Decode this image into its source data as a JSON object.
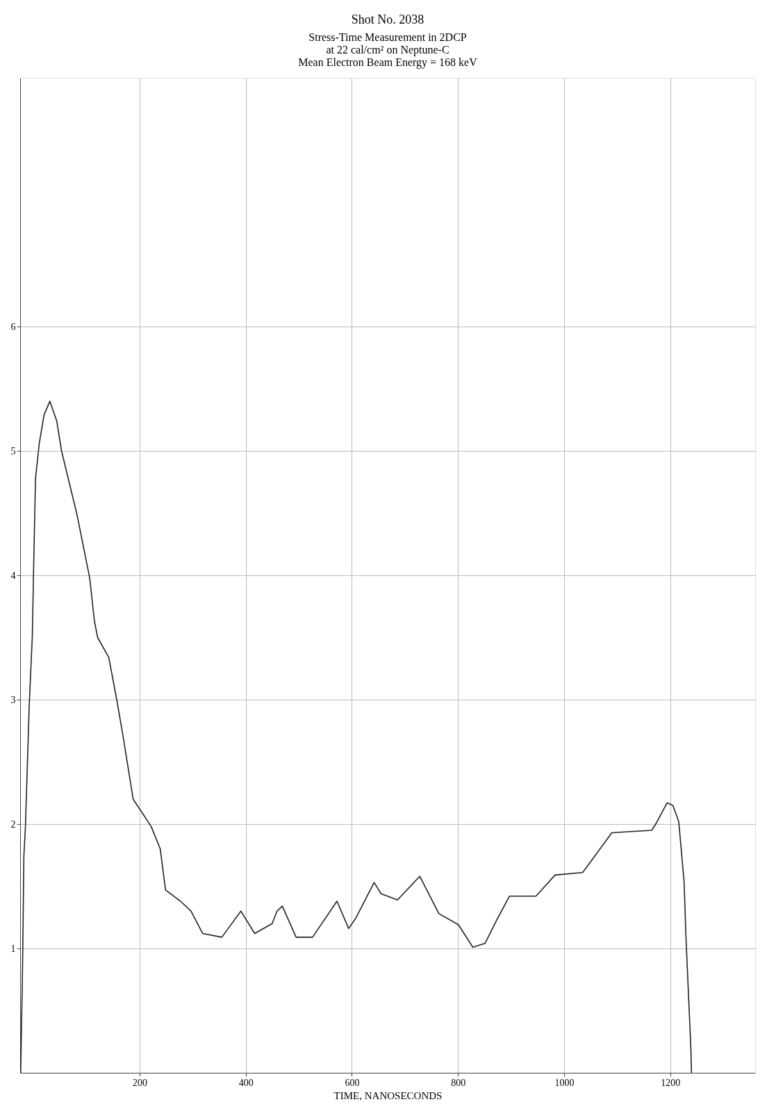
{
  "chart_data": {
    "type": "line",
    "title": "Shot No. 2038",
    "subtitle": [
      "Stress-Time Measurement in 2DCP",
      "at 22 cal/cm² on Neptune-C",
      "Mean Electron Beam Energy = 168 keV"
    ],
    "xlabel": "TIME, NANOSECONDS",
    "x": [
      -24,
      -21,
      -20,
      -18,
      -15,
      -8,
      -2,
      0,
      4,
      11,
      20,
      31,
      44,
      53,
      82,
      106,
      115,
      121,
      142,
      157,
      168,
      188,
      222,
      239,
      249,
      277,
      297,
      319,
      355,
      391,
      417,
      450,
      459,
      469,
      495,
      526,
      572,
      594,
      607,
      642,
      655,
      686,
      728,
      764,
      801,
      828,
      851,
      872,
      897,
      947,
      983,
      1035,
      1090,
      1165,
      1174,
      1194,
      1205,
      1216,
      1226,
      1230,
      1239,
      1240
    ],
    "series": [
      {
        "color": "#222222",
        "values": [
          0,
          0.72,
          1.0,
          1.74,
          1.98,
          2.94,
          3.52,
          3.98,
          4.78,
          5.06,
          5.29,
          5.4,
          5.24,
          5.0,
          4.49,
          3.98,
          3.63,
          3.5,
          3.34,
          3.0,
          2.73,
          2.2,
          1.98,
          1.8,
          1.47,
          1.38,
          1.3,
          1.12,
          1.09,
          1.3,
          1.12,
          1.2,
          1.3,
          1.34,
          1.09,
          1.09,
          1.38,
          1.16,
          1.24,
          1.53,
          1.44,
          1.39,
          1.58,
          1.28,
          1.19,
          1.01,
          1.04,
          1.22,
          1.42,
          1.42,
          1.59,
          1.61,
          1.93,
          1.95,
          2.01,
          2.17,
          2.15,
          2.02,
          1.54,
          1.05,
          0.18,
          0
        ]
      }
    ],
    "xlim": [
      -25,
      1360
    ],
    "xticks": [
      200,
      400,
      600,
      800,
      1000,
      1200
    ],
    "ylim": [
      0,
      8
    ],
    "yticks": [
      1,
      2,
      3,
      4,
      5,
      6
    ],
    "grid": true,
    "marker": "none",
    "line_style": "solid"
  }
}
